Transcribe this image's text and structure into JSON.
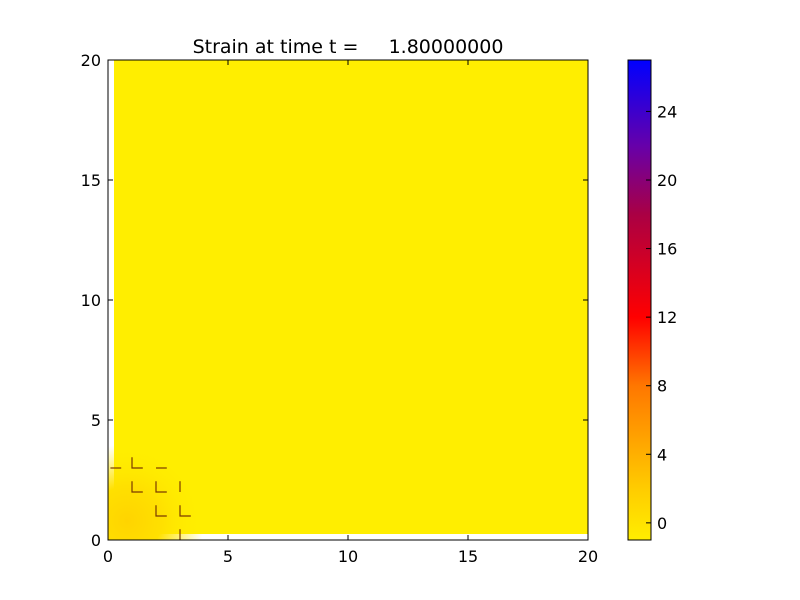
{
  "chart_data": {
    "type": "heatmap",
    "title": "Strain at time t =     1.80000000",
    "xlabel": "",
    "ylabel": "",
    "xlim": [
      0,
      20
    ],
    "ylim": [
      0,
      20
    ],
    "x_ticks": [
      0,
      5,
      10,
      15,
      20
    ],
    "y_ticks": [
      0,
      5,
      10,
      15,
      20
    ],
    "x_tick_labels": [
      "0",
      "5",
      "10",
      "15",
      "20"
    ],
    "y_tick_labels": [
      "0",
      "5",
      "10",
      "15",
      "20"
    ],
    "data_extent": {
      "x": [
        0.25,
        20
      ],
      "y": [
        0.25,
        20
      ]
    },
    "background_value": 0,
    "hotspot": {
      "center": [
        0.8,
        0.8
      ],
      "radius": 3.2,
      "peak_value": 2.5
    },
    "grid": false,
    "colorbar": {
      "range": [
        -1,
        27
      ],
      "ticks": [
        0,
        4,
        8,
        12,
        16,
        20,
        24
      ],
      "tick_labels": [
        "0",
        "4",
        "8",
        "12",
        "16",
        "20",
        "24"
      ],
      "colormap": [
        {
          "value": -1,
          "color": "#ffee00"
        },
        {
          "value": 2,
          "color": "#ffcc00"
        },
        {
          "value": 8,
          "color": "#ff7700"
        },
        {
          "value": 12,
          "color": "#ff0000"
        },
        {
          "value": 18,
          "color": "#aa0044"
        },
        {
          "value": 22,
          "color": "#6600aa"
        },
        {
          "value": 27,
          "color": "#0000ff"
        }
      ]
    },
    "defect_marks": [
      {
        "x": 0.1,
        "y": 3.0,
        "shape": "dash"
      },
      {
        "x": 1.0,
        "y": 3.0,
        "shape": "L"
      },
      {
        "x": 2.0,
        "y": 3.0,
        "shape": "dash"
      },
      {
        "x": 1.0,
        "y": 2.0,
        "shape": "L"
      },
      {
        "x": 2.0,
        "y": 2.0,
        "shape": "L"
      },
      {
        "x": 3.0,
        "y": 2.0,
        "shape": "tick"
      },
      {
        "x": 2.0,
        "y": 1.0,
        "shape": "L"
      },
      {
        "x": 3.0,
        "y": 1.0,
        "shape": "L"
      },
      {
        "x": 3.0,
        "y": 0.0,
        "shape": "tick"
      }
    ],
    "colors": {
      "field": "#ffee00",
      "axis_line": "#000000",
      "defect": "#7a3a00"
    }
  }
}
